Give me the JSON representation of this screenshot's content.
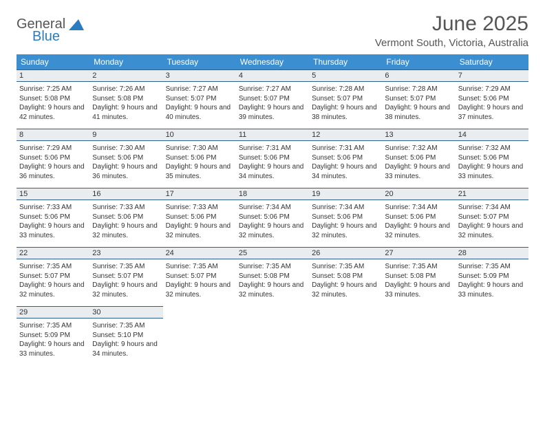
{
  "logo": {
    "word1": "General",
    "word2": "Blue",
    "triangle_color": "#2b7bbf"
  },
  "title": "June 2025",
  "location": "Vermont South, Victoria, Australia",
  "colors": {
    "header_bg": "#3b8fd1",
    "header_text": "#ffffff",
    "dayhead_bg": "#e9edf0",
    "dayhead_border": "#2b5f8a",
    "text": "#333333"
  },
  "weekdays": [
    "Sunday",
    "Monday",
    "Tuesday",
    "Wednesday",
    "Thursday",
    "Friday",
    "Saturday"
  ],
  "weeks": [
    [
      {
        "n": "1",
        "sr": "7:25 AM",
        "ss": "5:08 PM",
        "dl": "9 hours and 42 minutes."
      },
      {
        "n": "2",
        "sr": "7:26 AM",
        "ss": "5:08 PM",
        "dl": "9 hours and 41 minutes."
      },
      {
        "n": "3",
        "sr": "7:27 AM",
        "ss": "5:07 PM",
        "dl": "9 hours and 40 minutes."
      },
      {
        "n": "4",
        "sr": "7:27 AM",
        "ss": "5:07 PM",
        "dl": "9 hours and 39 minutes."
      },
      {
        "n": "5",
        "sr": "7:28 AM",
        "ss": "5:07 PM",
        "dl": "9 hours and 38 minutes."
      },
      {
        "n": "6",
        "sr": "7:28 AM",
        "ss": "5:07 PM",
        "dl": "9 hours and 38 minutes."
      },
      {
        "n": "7",
        "sr": "7:29 AM",
        "ss": "5:06 PM",
        "dl": "9 hours and 37 minutes."
      }
    ],
    [
      {
        "n": "8",
        "sr": "7:29 AM",
        "ss": "5:06 PM",
        "dl": "9 hours and 36 minutes."
      },
      {
        "n": "9",
        "sr": "7:30 AM",
        "ss": "5:06 PM",
        "dl": "9 hours and 36 minutes."
      },
      {
        "n": "10",
        "sr": "7:30 AM",
        "ss": "5:06 PM",
        "dl": "9 hours and 35 minutes."
      },
      {
        "n": "11",
        "sr": "7:31 AM",
        "ss": "5:06 PM",
        "dl": "9 hours and 34 minutes."
      },
      {
        "n": "12",
        "sr": "7:31 AM",
        "ss": "5:06 PM",
        "dl": "9 hours and 34 minutes."
      },
      {
        "n": "13",
        "sr": "7:32 AM",
        "ss": "5:06 PM",
        "dl": "9 hours and 33 minutes."
      },
      {
        "n": "14",
        "sr": "7:32 AM",
        "ss": "5:06 PM",
        "dl": "9 hours and 33 minutes."
      }
    ],
    [
      {
        "n": "15",
        "sr": "7:33 AM",
        "ss": "5:06 PM",
        "dl": "9 hours and 33 minutes."
      },
      {
        "n": "16",
        "sr": "7:33 AM",
        "ss": "5:06 PM",
        "dl": "9 hours and 32 minutes."
      },
      {
        "n": "17",
        "sr": "7:33 AM",
        "ss": "5:06 PM",
        "dl": "9 hours and 32 minutes."
      },
      {
        "n": "18",
        "sr": "7:34 AM",
        "ss": "5:06 PM",
        "dl": "9 hours and 32 minutes."
      },
      {
        "n": "19",
        "sr": "7:34 AM",
        "ss": "5:06 PM",
        "dl": "9 hours and 32 minutes."
      },
      {
        "n": "20",
        "sr": "7:34 AM",
        "ss": "5:06 PM",
        "dl": "9 hours and 32 minutes."
      },
      {
        "n": "21",
        "sr": "7:34 AM",
        "ss": "5:07 PM",
        "dl": "9 hours and 32 minutes."
      }
    ],
    [
      {
        "n": "22",
        "sr": "7:35 AM",
        "ss": "5:07 PM",
        "dl": "9 hours and 32 minutes."
      },
      {
        "n": "23",
        "sr": "7:35 AM",
        "ss": "5:07 PM",
        "dl": "9 hours and 32 minutes."
      },
      {
        "n": "24",
        "sr": "7:35 AM",
        "ss": "5:07 PM",
        "dl": "9 hours and 32 minutes."
      },
      {
        "n": "25",
        "sr": "7:35 AM",
        "ss": "5:08 PM",
        "dl": "9 hours and 32 minutes."
      },
      {
        "n": "26",
        "sr": "7:35 AM",
        "ss": "5:08 PM",
        "dl": "9 hours and 32 minutes."
      },
      {
        "n": "27",
        "sr": "7:35 AM",
        "ss": "5:08 PM",
        "dl": "9 hours and 33 minutes."
      },
      {
        "n": "28",
        "sr": "7:35 AM",
        "ss": "5:09 PM",
        "dl": "9 hours and 33 minutes."
      }
    ],
    [
      {
        "n": "29",
        "sr": "7:35 AM",
        "ss": "5:09 PM",
        "dl": "9 hours and 33 minutes."
      },
      {
        "n": "30",
        "sr": "7:35 AM",
        "ss": "5:10 PM",
        "dl": "9 hours and 34 minutes."
      },
      null,
      null,
      null,
      null,
      null
    ]
  ],
  "labels": {
    "sunrise": "Sunrise:",
    "sunset": "Sunset:",
    "daylight": "Daylight:"
  }
}
